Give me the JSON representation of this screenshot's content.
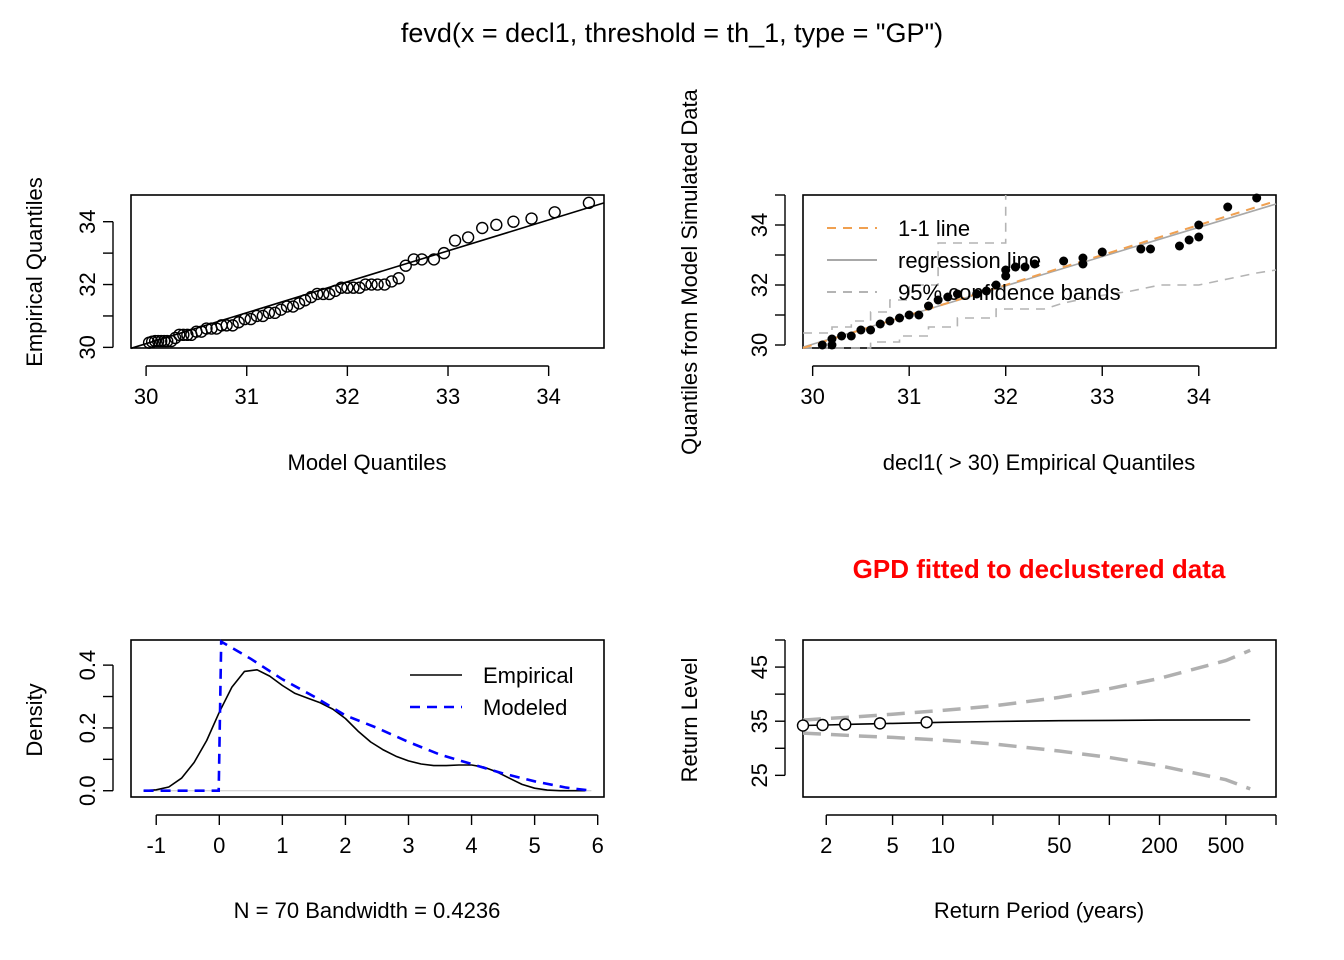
{
  "figure": {
    "title": "fevd(x = decl1, threshold = th_1, type = \"GP\")",
    "annotation": "GPD fitted to declustered data",
    "annotation_color": "#ff0000"
  },
  "chart_data": [
    {
      "id": "qq-model",
      "type": "scatter",
      "xlabel": "Model Quantiles",
      "ylabel": "Empirical Quantiles",
      "xlim": [
        29.85,
        34.55
      ],
      "ylim": [
        29.98,
        34.85
      ],
      "xticks": [
        30,
        31,
        32,
        33,
        34
      ],
      "yticks": [
        30,
        32,
        34
      ],
      "yticks_minor": [
        31,
        33
      ],
      "points": [
        [
          30.03,
          30.15
        ],
        [
          30.06,
          30.18
        ],
        [
          30.09,
          30.2
        ],
        [
          30.12,
          30.2
        ],
        [
          30.15,
          30.2
        ],
        [
          30.18,
          30.2
        ],
        [
          30.21,
          30.2
        ],
        [
          30.25,
          30.2
        ],
        [
          30.29,
          30.3
        ],
        [
          30.33,
          30.4
        ],
        [
          30.37,
          30.4
        ],
        [
          30.41,
          30.4
        ],
        [
          30.45,
          30.4
        ],
        [
          30.5,
          30.5
        ],
        [
          30.55,
          30.5
        ],
        [
          30.6,
          30.6
        ],
        [
          30.65,
          30.6
        ],
        [
          30.7,
          30.6
        ],
        [
          30.75,
          30.7
        ],
        [
          30.8,
          30.7
        ],
        [
          30.86,
          30.7
        ],
        [
          30.92,
          30.8
        ],
        [
          30.98,
          30.9
        ],
        [
          31.04,
          30.9
        ],
        [
          31.1,
          31.0
        ],
        [
          31.16,
          31.0
        ],
        [
          31.22,
          31.1
        ],
        [
          31.28,
          31.1
        ],
        [
          31.34,
          31.2
        ],
        [
          31.4,
          31.3
        ],
        [
          31.46,
          31.3
        ],
        [
          31.52,
          31.4
        ],
        [
          31.58,
          31.5
        ],
        [
          31.64,
          31.6
        ],
        [
          31.7,
          31.7
        ],
        [
          31.76,
          31.7
        ],
        [
          31.82,
          31.7
        ],
        [
          31.88,
          31.8
        ],
        [
          31.94,
          31.9
        ],
        [
          32.0,
          31.9
        ],
        [
          32.06,
          31.9
        ],
        [
          32.12,
          31.9
        ],
        [
          32.18,
          32.0
        ],
        [
          32.24,
          32.0
        ],
        [
          32.3,
          32.0
        ],
        [
          32.37,
          32.0
        ],
        [
          32.44,
          32.1
        ],
        [
          32.51,
          32.2
        ],
        [
          32.58,
          32.6
        ],
        [
          32.66,
          32.8
        ],
        [
          32.74,
          32.8
        ],
        [
          32.86,
          32.8
        ],
        [
          32.96,
          33.0
        ],
        [
          33.07,
          33.4
        ],
        [
          33.2,
          33.5
        ],
        [
          33.34,
          33.8
        ],
        [
          33.48,
          33.9
        ],
        [
          33.65,
          34.0
        ],
        [
          33.83,
          34.1
        ],
        [
          34.06,
          34.3
        ],
        [
          34.4,
          34.6
        ]
      ],
      "fit_line": {
        "x": [
          29.85,
          34.55
        ],
        "y": [
          29.97,
          34.6
        ]
      }
    },
    {
      "id": "qq-simulated",
      "type": "scatter",
      "xlabel": "decl1( > 30) Empirical Quantiles",
      "ylabel": "Quantiles from Model Simulated Data",
      "xlim": [
        29.9,
        34.8
      ],
      "ylim": [
        29.9,
        35.0
      ],
      "xticks": [
        30,
        31,
        32,
        33,
        34
      ],
      "yticks": [
        30,
        32,
        34
      ],
      "yticks_minor": [
        31,
        33,
        35
      ],
      "legend": [
        "1-1 line",
        "regression line",
        "95% confidence bands"
      ],
      "colors": {
        "one_to_one": "#f0a050",
        "regression": "#a8a8a8",
        "bands": "#b4b4b4"
      },
      "points": [
        [
          30.1,
          30.0
        ],
        [
          30.2,
          30.0
        ],
        [
          30.2,
          30.2
        ],
        [
          30.3,
          30.3
        ],
        [
          30.4,
          30.3
        ],
        [
          30.5,
          30.5
        ],
        [
          30.6,
          30.5
        ],
        [
          30.7,
          30.7
        ],
        [
          30.8,
          30.8
        ],
        [
          30.9,
          30.9
        ],
        [
          31.0,
          31.0
        ],
        [
          31.1,
          31.0
        ],
        [
          31.2,
          31.3
        ],
        [
          31.3,
          31.5
        ],
        [
          31.4,
          31.6
        ],
        [
          31.5,
          31.7
        ],
        [
          31.7,
          31.7
        ],
        [
          31.8,
          31.8
        ],
        [
          31.9,
          32.0
        ],
        [
          32.0,
          32.3
        ],
        [
          32.0,
          32.5
        ],
        [
          32.1,
          32.6
        ],
        [
          32.2,
          32.6
        ],
        [
          32.3,
          32.7
        ],
        [
          32.6,
          32.8
        ],
        [
          32.8,
          32.7
        ],
        [
          32.8,
          32.9
        ],
        [
          33.0,
          33.1
        ],
        [
          33.4,
          33.2
        ],
        [
          33.5,
          33.2
        ],
        [
          33.8,
          33.3
        ],
        [
          33.9,
          33.5
        ],
        [
          34.0,
          33.6
        ],
        [
          34.0,
          34.0
        ],
        [
          34.3,
          34.6
        ],
        [
          34.6,
          34.9
        ]
      ],
      "one_to_one": {
        "x": [
          29.9,
          34.8
        ],
        "y": [
          29.9,
          34.8
        ]
      },
      "regression": {
        "x": [
          29.9,
          34.8
        ],
        "y": [
          29.93,
          34.7
        ]
      },
      "upper_band": [
        [
          29.9,
          30.4
        ],
        [
          30.2,
          30.4
        ],
        [
          30.2,
          30.6
        ],
        [
          30.4,
          30.6
        ],
        [
          30.4,
          30.8
        ],
        [
          30.6,
          30.8
        ],
        [
          30.6,
          31.1
        ],
        [
          30.8,
          31.1
        ],
        [
          30.8,
          31.5
        ],
        [
          31.0,
          31.5
        ],
        [
          31.0,
          32.0
        ],
        [
          31.3,
          32.0
        ],
        [
          31.3,
          33.4
        ],
        [
          32.0,
          33.4
        ],
        [
          32.0,
          35.0
        ]
      ],
      "lower_band": [
        [
          29.9,
          29.9
        ],
        [
          30.6,
          29.9
        ],
        [
          30.6,
          30.1
        ],
        [
          30.9,
          30.1
        ],
        [
          30.9,
          30.3
        ],
        [
          31.2,
          30.3
        ],
        [
          31.2,
          30.6
        ],
        [
          31.5,
          30.6
        ],
        [
          31.5,
          30.9
        ],
        [
          31.9,
          30.9
        ],
        [
          31.9,
          31.2
        ],
        [
          32.4,
          31.2
        ],
        [
          32.6,
          31.4
        ],
        [
          32.9,
          31.6
        ],
        [
          33.3,
          31.8
        ],
        [
          33.6,
          32.0
        ],
        [
          34.0,
          32.0
        ],
        [
          34.3,
          32.2
        ],
        [
          34.6,
          32.4
        ],
        [
          34.8,
          32.5
        ]
      ]
    },
    {
      "id": "density",
      "type": "line",
      "xlabel": "N = 70   Bandwidth = 0.4236",
      "ylabel": "Density",
      "xlim": [
        -1.4,
        6.1
      ],
      "ylim": [
        -0.02,
        0.48
      ],
      "xticks": [
        -1,
        0,
        1,
        2,
        3,
        4,
        5,
        6
      ],
      "yticks": [
        0.0,
        0.2,
        0.4
      ],
      "yticks_minor": [
        0.1,
        0.3
      ],
      "legend": [
        "Empirical",
        "Modeled"
      ],
      "colors": {
        "empirical": "#000000",
        "modeled": "#0000ff"
      },
      "series": [
        {
          "name": "Empirical",
          "x": [
            -1.2,
            -1.0,
            -0.8,
            -0.6,
            -0.4,
            -0.2,
            0.0,
            0.2,
            0.4,
            0.6,
            0.8,
            1.0,
            1.2,
            1.4,
            1.6,
            1.8,
            2.0,
            2.2,
            2.4,
            2.6,
            2.8,
            3.0,
            3.2,
            3.4,
            3.6,
            3.8,
            4.0,
            4.2,
            4.4,
            4.6,
            4.8,
            5.0,
            5.2,
            5.4,
            5.6,
            5.8
          ],
          "y": [
            0.0,
            0.003,
            0.012,
            0.04,
            0.09,
            0.16,
            0.25,
            0.33,
            0.38,
            0.385,
            0.365,
            0.335,
            0.31,
            0.295,
            0.28,
            0.26,
            0.23,
            0.19,
            0.155,
            0.13,
            0.11,
            0.095,
            0.085,
            0.08,
            0.08,
            0.082,
            0.082,
            0.075,
            0.06,
            0.04,
            0.02,
            0.008,
            0.002,
            0.0,
            0.0,
            0.0
          ]
        },
        {
          "name": "Modeled",
          "x": [
            -1.2,
            -0.01,
            0.03,
            0.5,
            1.0,
            1.5,
            2.0,
            2.5,
            3.0,
            3.5,
            4.0,
            4.5,
            5.0,
            5.5,
            5.9
          ],
          "y": [
            0.0,
            0.0,
            0.475,
            0.42,
            0.355,
            0.3,
            0.24,
            0.2,
            0.155,
            0.115,
            0.085,
            0.055,
            0.03,
            0.01,
            0.0
          ]
        }
      ]
    },
    {
      "id": "return-level",
      "type": "line",
      "xlabel": "Return Period (years)",
      "ylabel": "Return Level",
      "x_scale": "log",
      "xlim": [
        1.45,
        1000
      ],
      "ylim": [
        21,
        50
      ],
      "xticks": [
        2,
        5,
        10,
        50,
        200,
        500
      ],
      "xticks_minor": [
        20,
        100,
        1000
      ],
      "yticks": [
        25,
        35,
        45
      ],
      "yticks_minor": [
        30,
        40,
        50
      ],
      "colors": {
        "ci": "#b0b0b0",
        "estimate": "#000000"
      },
      "points": [
        [
          1.45,
          34.2
        ],
        [
          1.9,
          34.3
        ],
        [
          2.6,
          34.4
        ],
        [
          4.2,
          34.6
        ],
        [
          8.0,
          34.8
        ]
      ],
      "estimate": {
        "x": [
          1.45,
          2,
          3,
          5,
          10,
          20,
          50,
          100,
          200,
          500,
          700
        ],
        "y": [
          34.2,
          34.3,
          34.45,
          34.6,
          34.8,
          34.95,
          35.1,
          35.15,
          35.2,
          35.25,
          35.25
        ]
      },
      "upper_ci": {
        "x": [
          1.45,
          2,
          3,
          5,
          10,
          20,
          50,
          100,
          200,
          500,
          700
        ],
        "y": [
          35.2,
          35.5,
          35.8,
          36.3,
          37.0,
          37.8,
          39.4,
          41.0,
          42.9,
          46.2,
          48.1
        ]
      },
      "lower_ci": {
        "x": [
          1.45,
          2,
          3,
          5,
          10,
          20,
          50,
          100,
          200,
          500,
          700
        ],
        "y": [
          32.8,
          32.6,
          32.3,
          32.0,
          31.5,
          30.8,
          29.5,
          28.3,
          26.8,
          24.2,
          22.5
        ]
      }
    }
  ]
}
